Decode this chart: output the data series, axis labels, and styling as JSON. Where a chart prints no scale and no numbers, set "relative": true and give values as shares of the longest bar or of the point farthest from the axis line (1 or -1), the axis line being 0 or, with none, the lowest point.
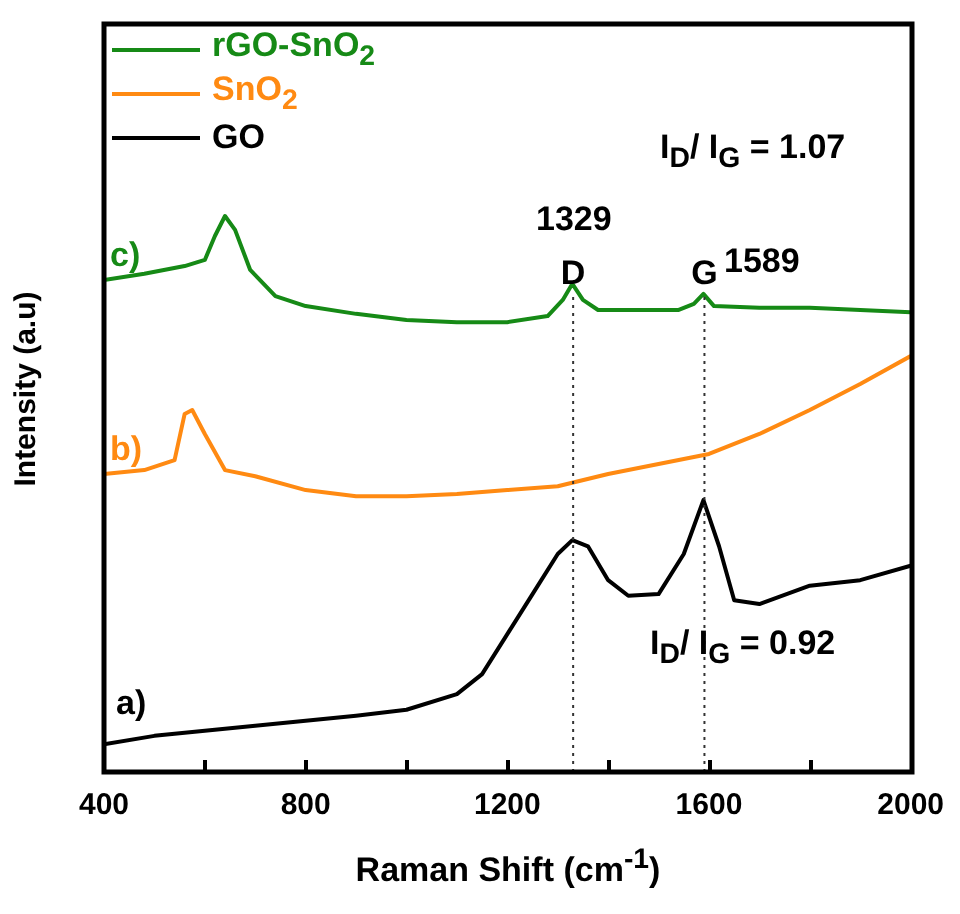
{
  "chart_data": {
    "type": "line",
    "relative": true,
    "xlabel": "Raman Shift (cm$^{-1}$)",
    "ylabel": "Intensity (a.u)",
    "xlim": [
      400,
      2000
    ],
    "xticks": [
      400,
      {
        "value": 600,
        "label": null
      },
      800,
      {
        "value": 1000,
        "label": null
      },
      1200,
      {
        "value": 1400,
        "label": null
      },
      1600,
      {
        "value": 1800,
        "label": null
      },
      2000
    ],
    "legend": "top left",
    "grid": false,
    "marker": "none",
    "line_style": "solid",
    "series": [
      {
        "name": "rGO-SnO$_{2}$",
        "color": "#168a16",
        "x": [
          400,
          480,
          560,
          600,
          620,
          640,
          660,
          690,
          740,
          800,
          900,
          1000,
          1100,
          1200,
          1280,
          1310,
          1329,
          1350,
          1380,
          1450,
          1540,
          1570,
          1589,
          1610,
          1700,
          1800,
          1900,
          2000
        ],
        "values": [
          0.885,
          0.896,
          0.91,
          0.921,
          0.964,
          1,
          0.975,
          0.903,
          0.856,
          0.838,
          0.824,
          0.813,
          0.809,
          0.809,
          0.82,
          0.849,
          0.878,
          0.849,
          0.831,
          0.831,
          0.831,
          0.842,
          0.86,
          0.838,
          0.835,
          0.835,
          0.831,
          0.827
        ]
      },
      {
        "name": "SnO$_{2}$",
        "color": "#ff8a12",
        "x": [
          400,
          480,
          540,
          560,
          575,
          600,
          640,
          700,
          800,
          900,
          1000,
          1100,
          1200,
          1300,
          1400,
          1500,
          1600,
          1700,
          1800,
          1900,
          2000
        ],
        "values": [
          0.536,
          0.543,
          0.561,
          0.644,
          0.651,
          0.608,
          0.543,
          0.532,
          0.507,
          0.496,
          0.496,
          0.5,
          0.507,
          0.514,
          0.536,
          0.554,
          0.572,
          0.608,
          0.651,
          0.698,
          0.748
        ]
      },
      {
        "name": "GO",
        "color": "#000000",
        "x": [
          400,
          500,
          700,
          900,
          1000,
          1100,
          1150,
          1200,
          1250,
          1300,
          1329,
          1360,
          1400,
          1440,
          1500,
          1550,
          1589,
          1620,
          1650,
          1700,
          1800,
          1900,
          2000
        ],
        "values": [
          0.05,
          0.065,
          0.083,
          0.101,
          0.112,
          0.14,
          0.176,
          0.248,
          0.32,
          0.392,
          0.417,
          0.406,
          0.345,
          0.317,
          0.32,
          0.392,
          0.489,
          0.406,
          0.309,
          0.302,
          0.335,
          0.345,
          0.371
        ]
      }
    ],
    "ref_lines": [
      {
        "axis": "x",
        "value": 1329,
        "label": "D",
        "line_style": "dotted"
      },
      {
        "axis": "x",
        "value": 1589,
        "label": "G",
        "line_style": "dotted"
      }
    ],
    "annotations": [
      "1329",
      "1589",
      "c)",
      "b)",
      "a)",
      "I$_{D}$/ I$_{G}$ = 1.07",
      "I$_{D}$/ I$_{G}$ = 0.92"
    ]
  }
}
